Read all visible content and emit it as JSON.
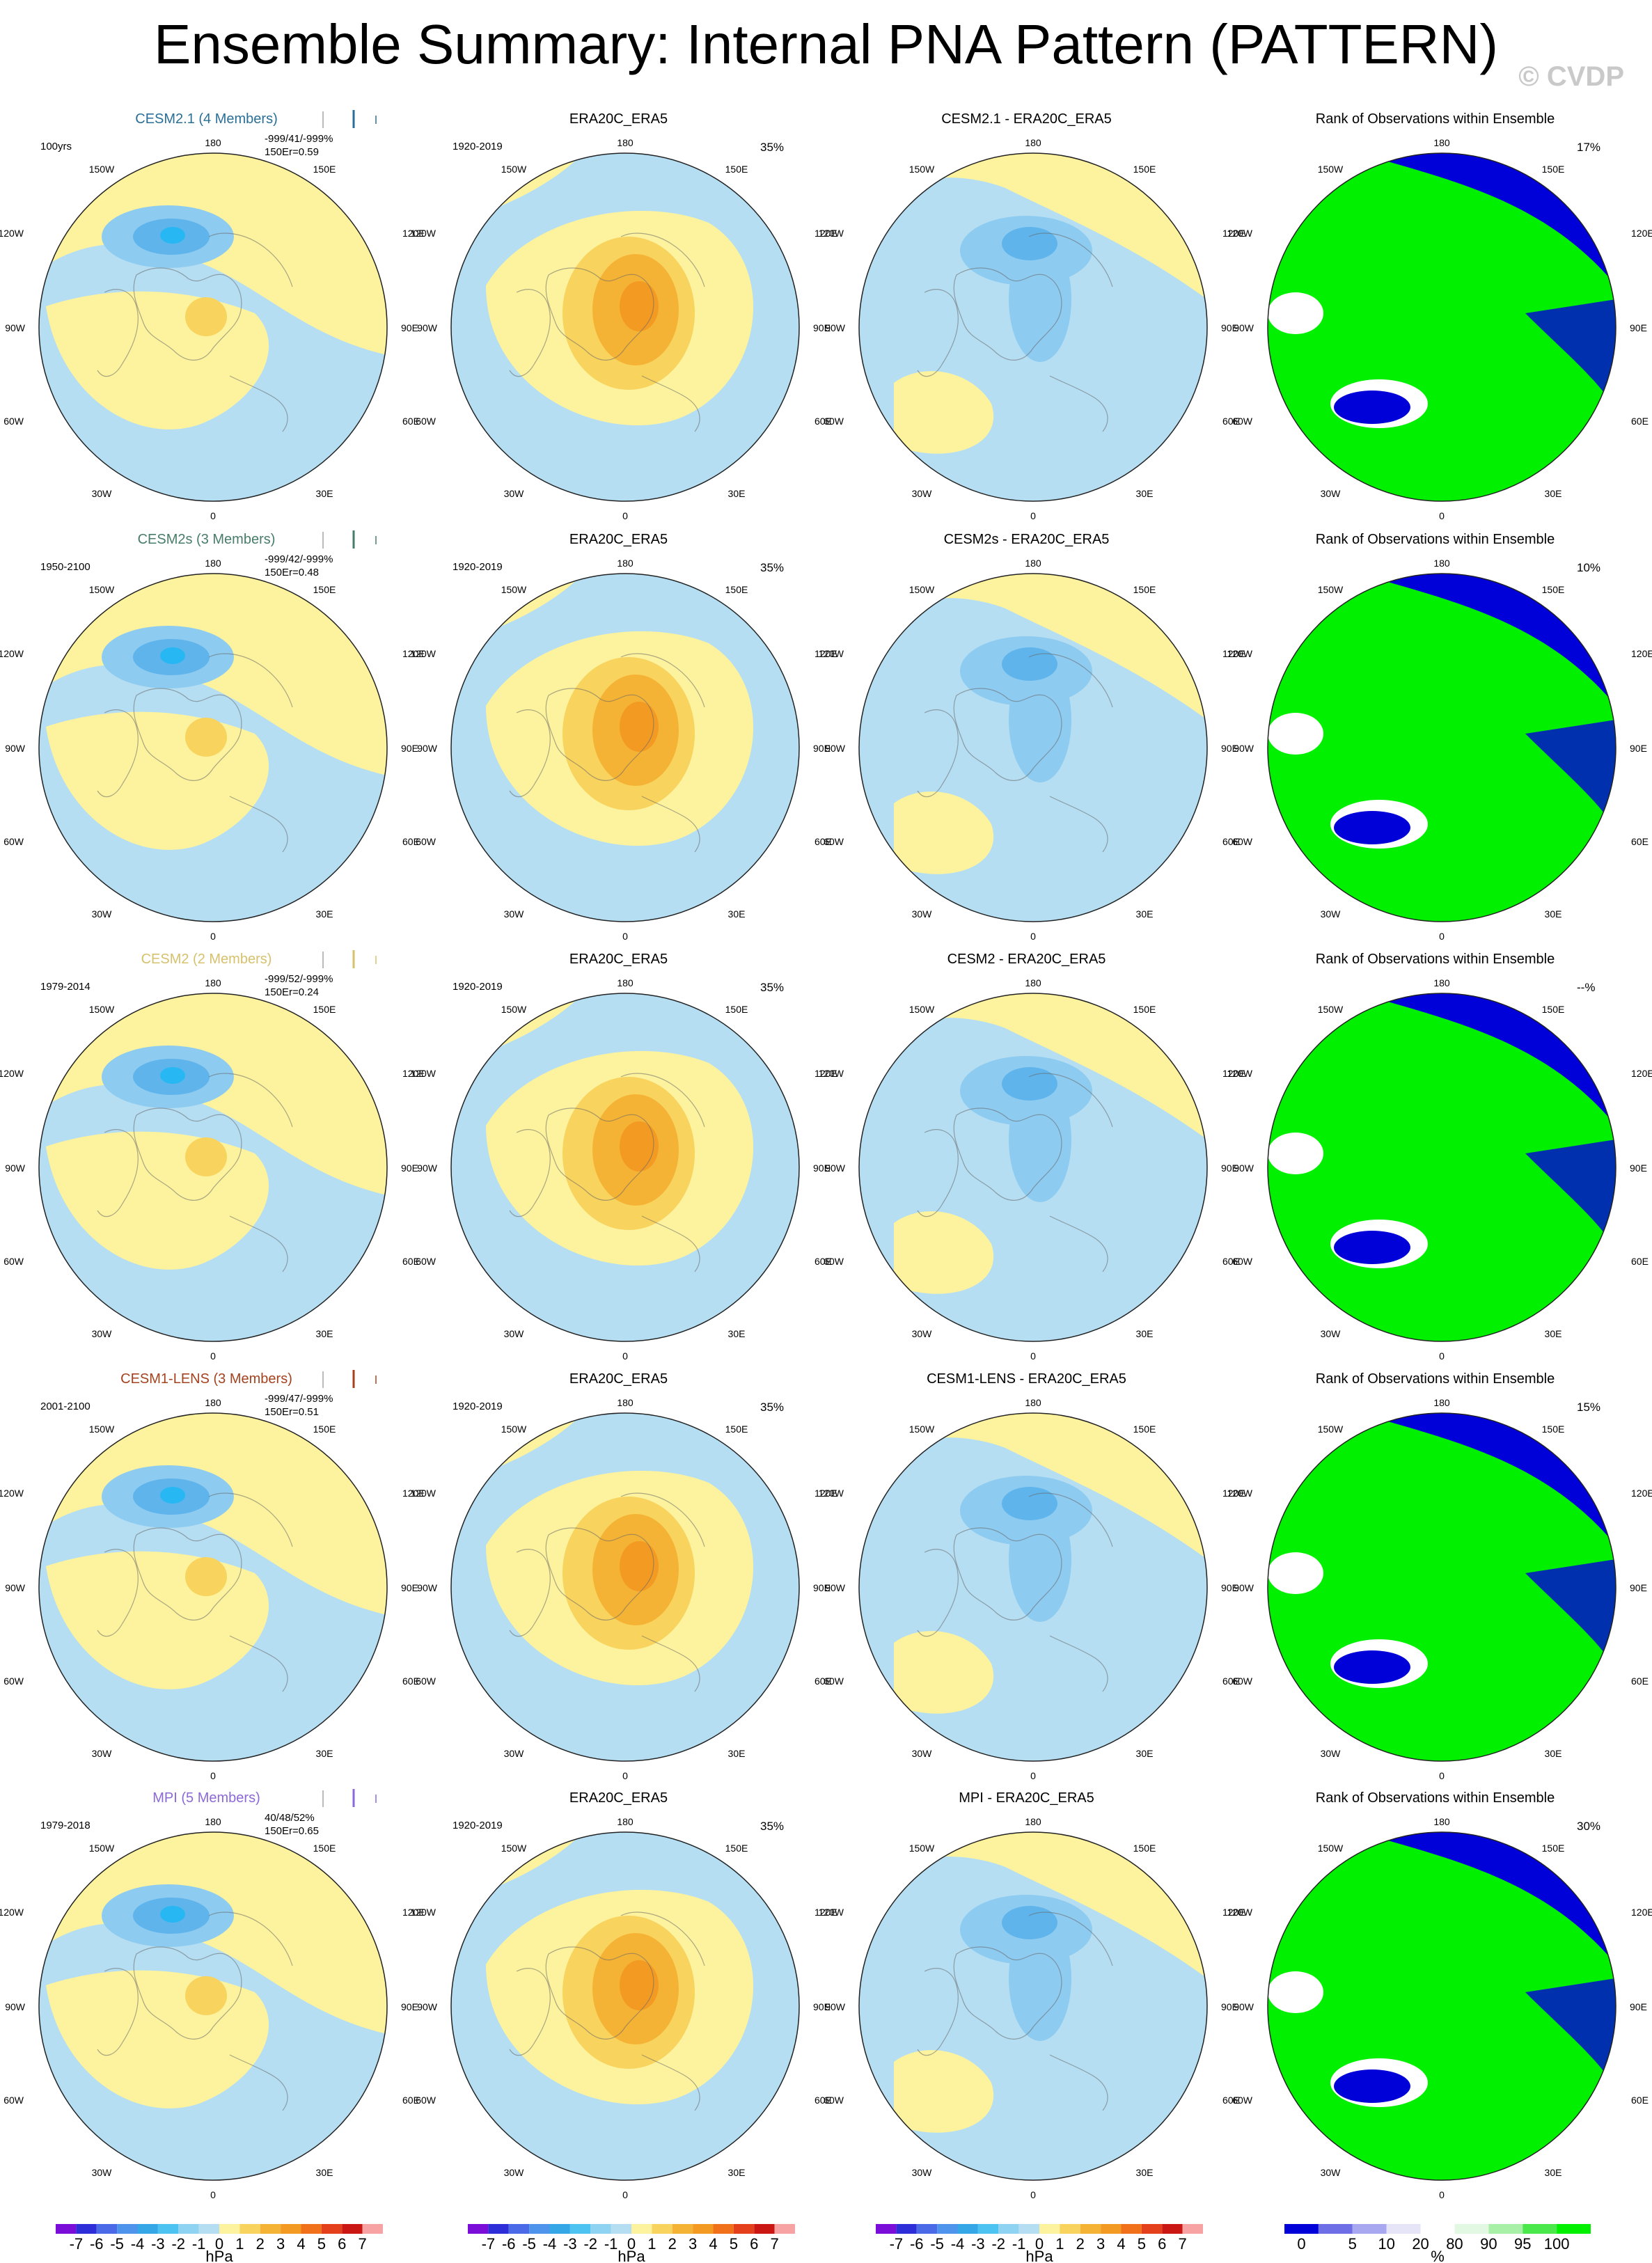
{
  "figure": {
    "title": "Ensemble Summary: Internal PNA Pattern (PATTERN)",
    "copyright": "© CVDP"
  },
  "colors": {
    "ocean_light": "#b5def2",
    "land_yellow": "#fdf39e",
    "neg1": "#8ecbf0",
    "neg2": "#5fb4eb",
    "neg3": "#27b8f3",
    "pos1": "#f8d35e",
    "pos2": "#f5b335",
    "pos3": "#f39a23",
    "rank_blue": "#0000d8",
    "rank_green": "#00f000",
    "title_cesm21": "#2a6f97",
    "title_cesm2s": "#477d69",
    "title_cesm2": "#d6c16d",
    "title_cesm1": "#a5421e",
    "title_mpi": "#8c69d8"
  },
  "longitude_labels": {
    "top": "180",
    "bottom": "0",
    "l1": "150W",
    "l2": "120W",
    "l3": "90W",
    "l4": "60W",
    "l5": "30W",
    "r1": "150E",
    "r2": "120E",
    "r3": "90E",
    "r4": "60E",
    "r5": "30E"
  },
  "rows": [
    {
      "model": "CESM2.1 (4 Members)",
      "model_color": "title_cesm21",
      "period": "100yrs",
      "stats_line1": "-999/41/-999%",
      "stats_line2": "150E",
      "stats_r": "r=0.59",
      "obs_title": "ERA20C_ERA5",
      "obs_period": "1920-2019",
      "obs_pct": "35%",
      "diff_title": "CESM2.1 - ERA20C_ERA5",
      "rank_title": "Rank of Observations within Ensemble",
      "rank_pct": "17%"
    },
    {
      "model": "CESM2s (3 Members)",
      "model_color": "title_cesm2s",
      "period": "1950-2100",
      "stats_line1": "-999/42/-999%",
      "stats_line2": "150E",
      "stats_r": "r=0.48",
      "obs_title": "ERA20C_ERA5",
      "obs_period": "1920-2019",
      "obs_pct": "35%",
      "diff_title": "CESM2s - ERA20C_ERA5",
      "rank_title": "Rank of Observations within Ensemble",
      "rank_pct": "10%"
    },
    {
      "model": "CESM2 (2 Members)",
      "model_color": "title_cesm2",
      "period": "1979-2014",
      "stats_line1": "-999/52/-999%",
      "stats_line2": "150E",
      "stats_r": "r=0.24",
      "obs_title": "ERA20C_ERA5",
      "obs_period": "1920-2019",
      "obs_pct": "35%",
      "diff_title": "CESM2 - ERA20C_ERA5",
      "rank_title": "Rank of Observations within Ensemble",
      "rank_pct": "--%"
    },
    {
      "model": "CESM1-LENS (3 Members)",
      "model_color": "title_cesm1",
      "period": "2001-2100",
      "stats_line1": "-999/47/-999%",
      "stats_line2": "150E",
      "stats_r": "r=0.51",
      "obs_title": "ERA20C_ERA5",
      "obs_period": "1920-2019",
      "obs_pct": "35%",
      "diff_title": "CESM1-LENS - ERA20C_ERA5",
      "rank_title": "Rank of Observations within Ensemble",
      "rank_pct": "15%"
    },
    {
      "model": "MPI (5 Members)",
      "model_color": "title_mpi",
      "period": "1979-2018",
      "stats_line1": "40/48/52%",
      "stats_line2": "150E",
      "stats_r": "r=0.65",
      "obs_title": "ERA20C_ERA5",
      "obs_period": "1920-2019",
      "obs_pct": "35%",
      "diff_title": "MPI - ERA20C_ERA5",
      "rank_title": "Rank of Observations within Ensemble",
      "rank_pct": "30%"
    }
  ],
  "chart_data": [
    {
      "type": "heatmap",
      "description": "Polar stereographic maps of the PNA pattern (hPa) for model ensembles, observations, differences, and observation rank within ensemble.",
      "colorbar_hpa": {
        "ticks": [
          "-7",
          "-6",
          "-5",
          "-4",
          "-3",
          "-2",
          "-1",
          "0",
          "1",
          "2",
          "3",
          "4",
          "5",
          "6",
          "7"
        ],
        "units": "hPa",
        "colors": [
          "#7a0ed8",
          "#2d2ed8",
          "#4a6ae8",
          "#4f94ec",
          "#35a6e6",
          "#4cc3f0",
          "#8ed3f1",
          "#b5def2",
          "#fdf39e",
          "#f8d35e",
          "#f5b335",
          "#f39a23",
          "#f07119",
          "#e3401b",
          "#cb1713",
          "#f7a3a3"
        ]
      },
      "colorbar_rank": {
        "ticks": [
          "0",
          "5",
          "10",
          "20",
          "80",
          "90",
          "95",
          "100"
        ],
        "units": "%",
        "colors": [
          "#0000d8",
          "#6e6ee6",
          "#a8a8f0",
          "#e5e5f7",
          "#ffffff",
          "#e2f8e2",
          "#a8f0a8",
          "#4ae84a",
          "#00f000"
        ]
      }
    }
  ]
}
